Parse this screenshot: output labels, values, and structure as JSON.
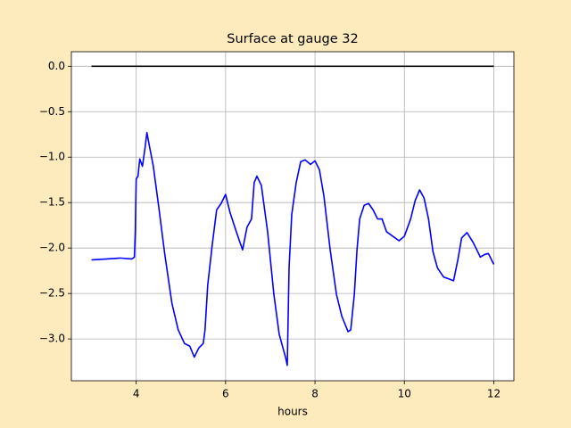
{
  "chart_data": {
    "type": "line",
    "title": "Surface at gauge 32",
    "xlabel": "hours",
    "xlim": [
      2.55,
      12.45
    ],
    "ylim": [
      -3.46,
      0.16
    ],
    "xticks": [
      4,
      6,
      8,
      10,
      12
    ],
    "yticks": [
      {
        "value": 0,
        "label": "0.0"
      },
      {
        "value": -0.5,
        "label": "−0.5"
      },
      {
        "value": -1,
        "label": "−1.0"
      },
      {
        "value": -1.5,
        "label": "−1.5"
      },
      {
        "value": -2,
        "label": "−2.0"
      },
      {
        "value": -2.5,
        "label": "−2.5"
      },
      {
        "value": -3,
        "label": "−3.0"
      }
    ],
    "grid": true,
    "series": [
      {
        "color": "#000000",
        "x": [
          3,
          12
        ],
        "values": [
          0,
          0
        ]
      },
      {
        "color": "#0000ff",
        "x": [
          3.0,
          3.34,
          3.64,
          3.9,
          3.96,
          3.98,
          4.0,
          4.04,
          4.08,
          4.14,
          4.2,
          4.24,
          4.3,
          4.38,
          4.5,
          4.64,
          4.8,
          4.94,
          5.08,
          5.2,
          5.3,
          5.4,
          5.5,
          5.54,
          5.6,
          5.7,
          5.8,
          5.9,
          6.0,
          6.1,
          6.24,
          6.38,
          6.48,
          6.58,
          6.64,
          6.7,
          6.8,
          6.94,
          7.08,
          7.2,
          7.34,
          7.38,
          7.42,
          7.48,
          7.58,
          7.68,
          7.78,
          7.9,
          8.0,
          8.1,
          8.2,
          8.34,
          8.48,
          8.6,
          8.74,
          8.8,
          8.88,
          8.94,
          9.0,
          9.1,
          9.2,
          9.3,
          9.4,
          9.5,
          9.6,
          9.74,
          9.88,
          10.0,
          10.14,
          10.24,
          10.34,
          10.44,
          10.54,
          10.64,
          10.74,
          10.88,
          11.0,
          11.1,
          11.2,
          11.28,
          11.4,
          11.54,
          11.7,
          11.8,
          11.88,
          12.0
        ],
        "values": [
          -2.13,
          -2.12,
          -2.11,
          -2.12,
          -2.1,
          -1.82,
          -1.24,
          -1.21,
          -1.02,
          -1.1,
          -0.89,
          -0.73,
          -0.89,
          -1.09,
          -1.53,
          -2.07,
          -2.61,
          -2.9,
          -3.05,
          -3.08,
          -3.2,
          -3.1,
          -3.05,
          -2.9,
          -2.41,
          -1.97,
          -1.58,
          -1.51,
          -1.41,
          -1.61,
          -1.82,
          -2.02,
          -1.77,
          -1.68,
          -1.28,
          -1.21,
          -1.31,
          -1.82,
          -2.51,
          -2.95,
          -3.2,
          -3.29,
          -2.22,
          -1.63,
          -1.28,
          -1.05,
          -1.03,
          -1.08,
          -1.04,
          -1.14,
          -1.43,
          -2.02,
          -2.51,
          -2.75,
          -2.92,
          -2.9,
          -2.51,
          -2.02,
          -1.68,
          -1.53,
          -1.51,
          -1.58,
          -1.68,
          -1.68,
          -1.82,
          -1.87,
          -1.92,
          -1.87,
          -1.68,
          -1.48,
          -1.36,
          -1.45,
          -1.68,
          -2.04,
          -2.22,
          -2.32,
          -2.34,
          -2.36,
          -2.12,
          -1.89,
          -1.83,
          -1.94,
          -2.1,
          -2.07,
          -2.06,
          -2.18
        ]
      }
    ]
  }
}
